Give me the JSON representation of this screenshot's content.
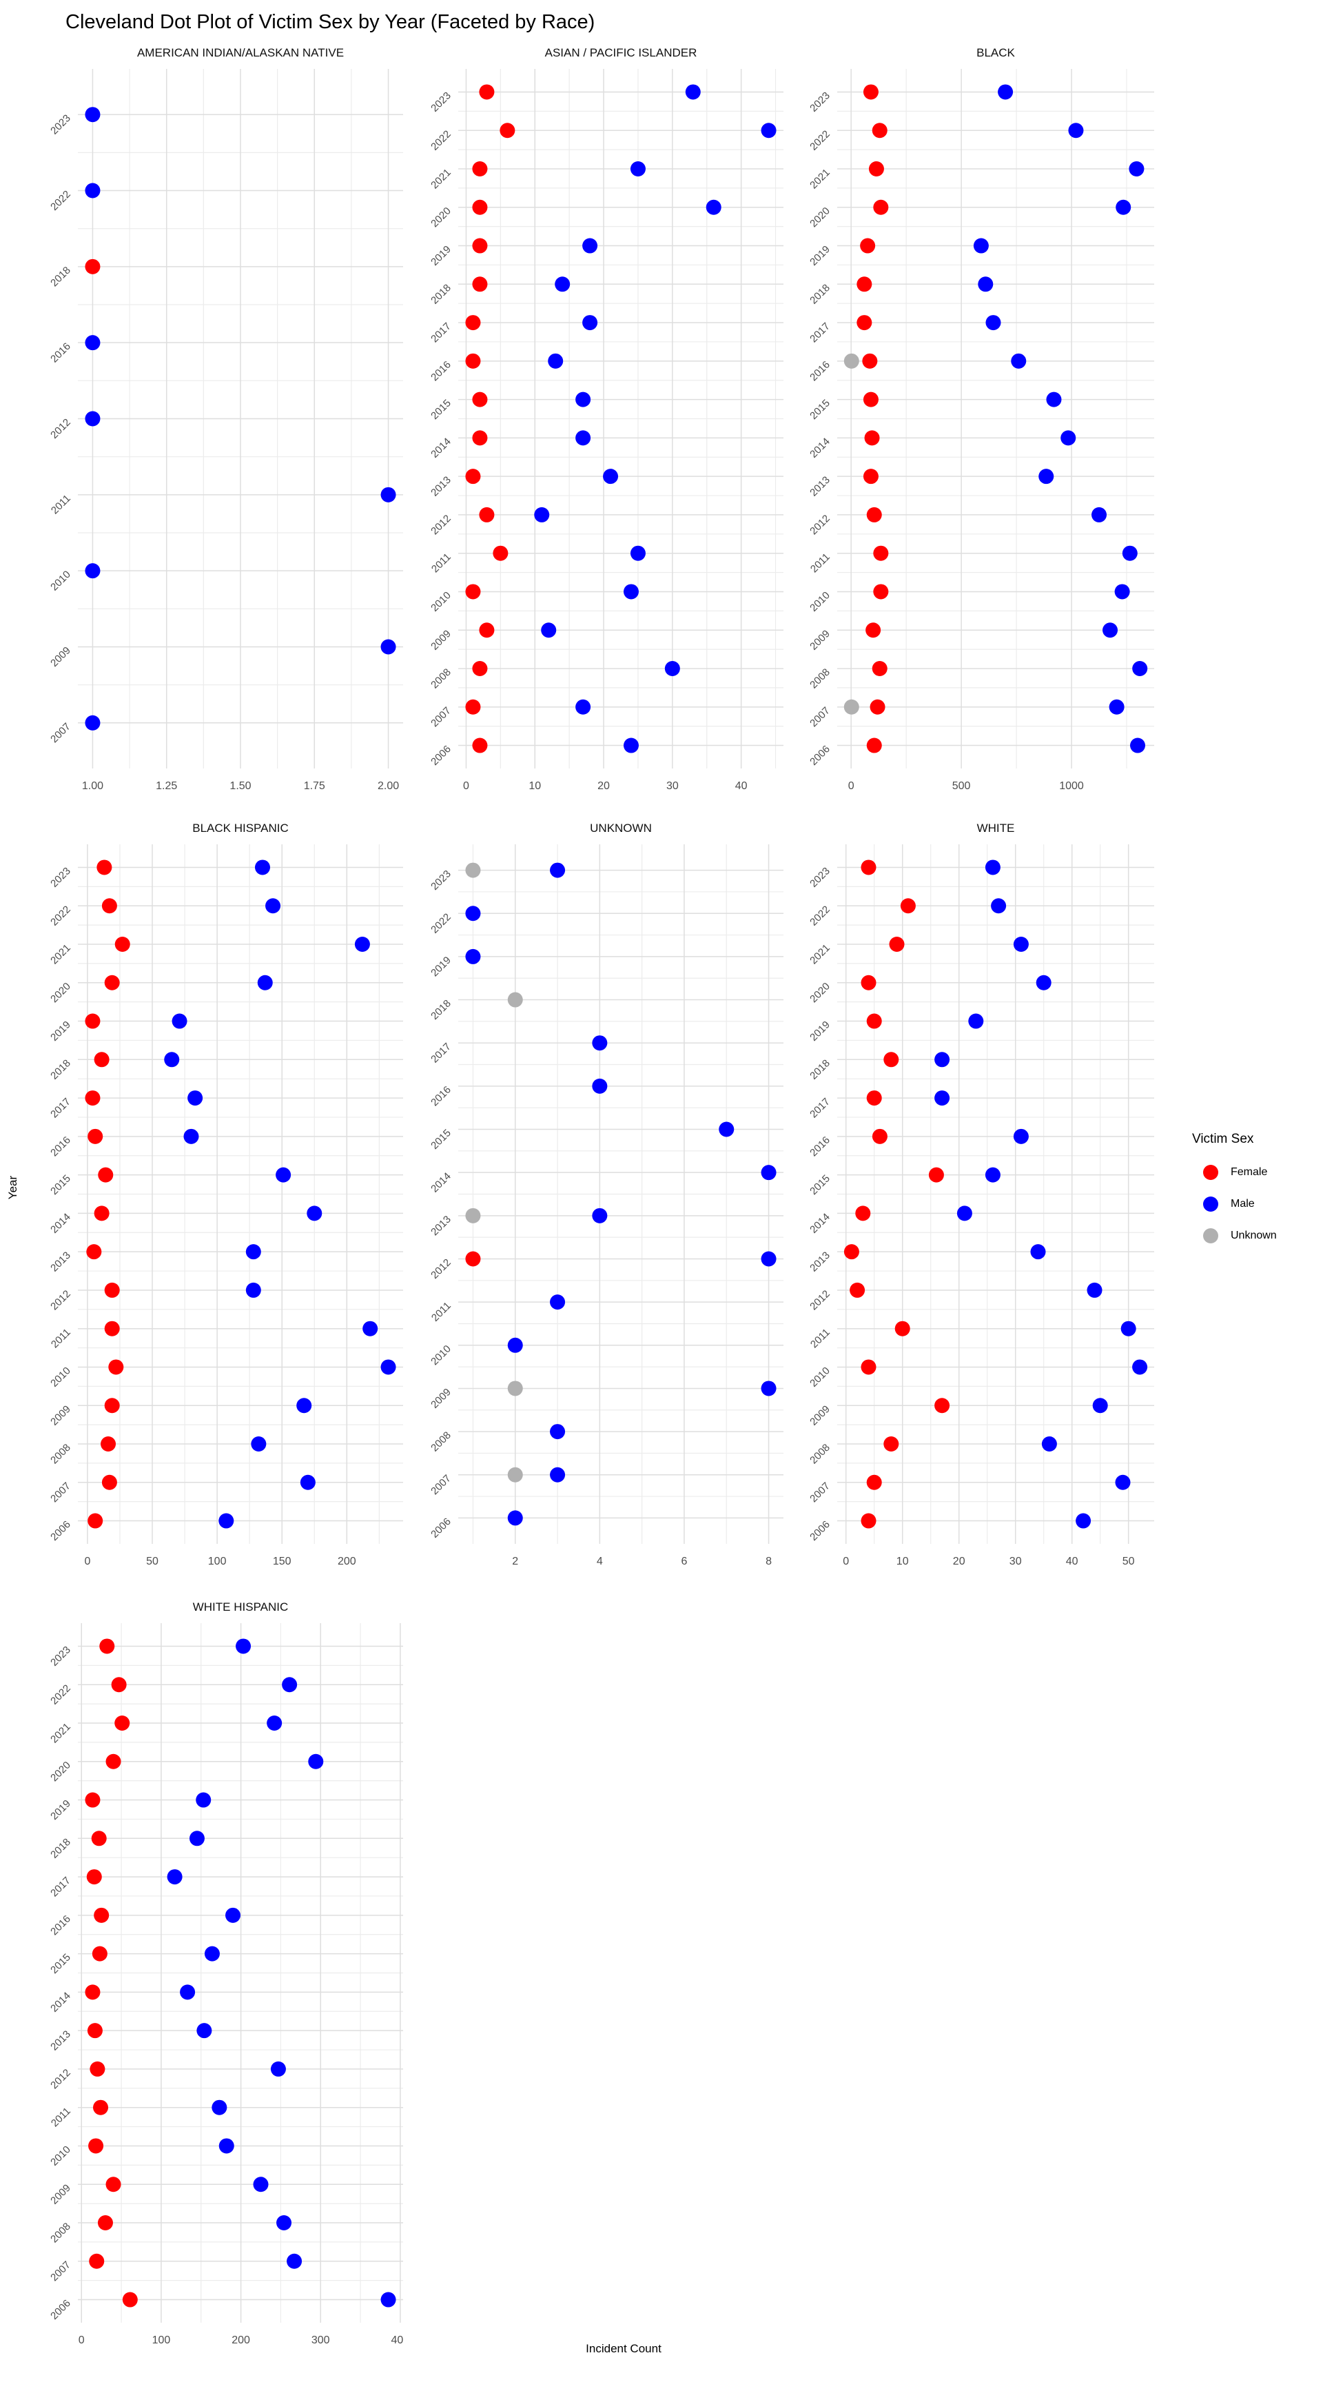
{
  "title": "Cleveland Dot Plot of Victim Sex by Year (Faceted by Race)",
  "axes": {
    "x_label": "Incident Count",
    "y_label": "Year"
  },
  "legend": {
    "title": "Victim Sex",
    "items": [
      {
        "label": "Female",
        "color": "#ff0000"
      },
      {
        "label": "Male",
        "color": "#0000ff"
      },
      {
        "label": "Unknown",
        "color": "#b0b0b0"
      }
    ]
  },
  "colors": {
    "female": "#ff0000",
    "male": "#0000ff",
    "unknown": "#b0b0b0",
    "grid_major": "#dedede",
    "grid_minor": "#ececec",
    "tick_text": "#4d4d4d"
  },
  "chart_data": [
    {
      "type": "scatter",
      "facet": "AMERICAN INDIAN/ALASKAN NATIVE",
      "x_domain": [
        0.95,
        2.05
      ],
      "x_ticks": [
        1,
        1.25,
        1.5,
        1.75,
        2
      ],
      "x_tick_labels": [
        "1.00",
        "1.25",
        "1.50",
        "1.75",
        "2.00"
      ],
      "x_minor": [
        1.125,
        1.375,
        1.625,
        1.875
      ],
      "points": [
        {
          "year": "2023",
          "male": 1
        },
        {
          "year": "2022",
          "male": 1
        },
        {
          "year": "2018",
          "female": 1
        },
        {
          "year": "2016",
          "male": 1
        },
        {
          "year": "2012",
          "male": 1
        },
        {
          "year": "2011",
          "male": 2
        },
        {
          "year": "2010",
          "male": 1
        },
        {
          "year": "2009",
          "male": 2
        },
        {
          "year": "2007",
          "male": 1
        }
      ]
    },
    {
      "type": "scatter",
      "facet": "ASIAN / PACIFIC ISLANDER",
      "x_domain": [
        -1.15,
        46.15
      ],
      "x_ticks": [
        0,
        10,
        20,
        30,
        40
      ],
      "x_tick_labels": [
        "0",
        "10",
        "20",
        "30",
        "40"
      ],
      "x_minor": [
        5,
        15,
        25,
        35,
        45
      ],
      "points": [
        {
          "year": "2023",
          "female": 3,
          "male": 33
        },
        {
          "year": "2022",
          "female": 6,
          "male": 44
        },
        {
          "year": "2021",
          "female": 2,
          "male": 25
        },
        {
          "year": "2020",
          "female": 2,
          "male": 36
        },
        {
          "year": "2019",
          "female": 2,
          "male": 18
        },
        {
          "year": "2018",
          "female": 2,
          "male": 14
        },
        {
          "year": "2017",
          "female": 1,
          "male": 18
        },
        {
          "year": "2016",
          "female": 1,
          "male": 13
        },
        {
          "year": "2015",
          "female": 2,
          "male": 17
        },
        {
          "year": "2014",
          "female": 2,
          "male": 17
        },
        {
          "year": "2013",
          "female": 1,
          "male": 21
        },
        {
          "year": "2012",
          "female": 3,
          "male": 11
        },
        {
          "year": "2011",
          "female": 5,
          "male": 25
        },
        {
          "year": "2010",
          "female": 1,
          "male": 24
        },
        {
          "year": "2009",
          "female": 3,
          "male": 12
        },
        {
          "year": "2008",
          "female": 2,
          "male": 30
        },
        {
          "year": "2007",
          "female": 1,
          "male": 17
        },
        {
          "year": "2006",
          "female": 2,
          "male": 24
        }
      ]
    },
    {
      "type": "scatter",
      "facet": "BLACK",
      "x_domain": [
        -63,
        1375
      ],
      "x_ticks": [
        0,
        500,
        1000
      ],
      "x_tick_labels": [
        "0",
        "500",
        "1000"
      ],
      "x_minor": [
        250,
        750,
        1250
      ],
      "points": [
        {
          "year": "2023",
          "female": 90,
          "male": 700
        },
        {
          "year": "2022",
          "female": 130,
          "male": 1020
        },
        {
          "year": "2021",
          "female": 115,
          "male": 1295
        },
        {
          "year": "2020",
          "female": 135,
          "male": 1235
        },
        {
          "year": "2019",
          "female": 75,
          "male": 590
        },
        {
          "year": "2018",
          "female": 60,
          "male": 610
        },
        {
          "year": "2017",
          "female": 60,
          "male": 645
        },
        {
          "year": "2016",
          "female": 85,
          "male": 760,
          "unknown": 2
        },
        {
          "year": "2015",
          "female": 90,
          "male": 920
        },
        {
          "year": "2014",
          "female": 95,
          "male": 985
        },
        {
          "year": "2013",
          "female": 90,
          "male": 885
        },
        {
          "year": "2012",
          "female": 105,
          "male": 1125
        },
        {
          "year": "2011",
          "female": 135,
          "male": 1265
        },
        {
          "year": "2010",
          "female": 135,
          "male": 1230
        },
        {
          "year": "2009",
          "female": 100,
          "male": 1175
        },
        {
          "year": "2008",
          "female": 130,
          "male": 1310
        },
        {
          "year": "2007",
          "female": 120,
          "male": 1205,
          "unknown": 2
        },
        {
          "year": "2006",
          "female": 105,
          "male": 1300
        }
      ]
    },
    {
      "type": "scatter",
      "facet": "BLACK HISPANIC",
      "x_domain": [
        -7.4,
        243.4
      ],
      "x_ticks": [
        0,
        50,
        100,
        150,
        200
      ],
      "x_tick_labels": [
        "0",
        "50",
        "100",
        "150",
        "200"
      ],
      "x_minor": [
        25,
        75,
        125,
        175,
        225
      ],
      "points": [
        {
          "year": "2023",
          "female": 13,
          "male": 135
        },
        {
          "year": "2022",
          "female": 17,
          "male": 143
        },
        {
          "year": "2021",
          "female": 27,
          "male": 212
        },
        {
          "year": "2020",
          "female": 19,
          "male": 137
        },
        {
          "year": "2019",
          "female": 4,
          "male": 71
        },
        {
          "year": "2018",
          "female": 11,
          "male": 65
        },
        {
          "year": "2017",
          "female": 4,
          "male": 83
        },
        {
          "year": "2016",
          "female": 6,
          "male": 80
        },
        {
          "year": "2015",
          "female": 14,
          "male": 151
        },
        {
          "year": "2014",
          "female": 11,
          "male": 175
        },
        {
          "year": "2013",
          "female": 5,
          "male": 128
        },
        {
          "year": "2012",
          "female": 19,
          "male": 128
        },
        {
          "year": "2011",
          "female": 19,
          "male": 218
        },
        {
          "year": "2010",
          "female": 22,
          "male": 232
        },
        {
          "year": "2009",
          "female": 19,
          "male": 167
        },
        {
          "year": "2008",
          "female": 16,
          "male": 132
        },
        {
          "year": "2007",
          "female": 17,
          "male": 170
        },
        {
          "year": "2006",
          "female": 6,
          "male": 107
        }
      ]
    },
    {
      "type": "scatter",
      "facet": "UNKNOWN",
      "x_domain": [
        0.65,
        8.35
      ],
      "x_ticks": [
        2,
        4,
        6,
        8
      ],
      "x_tick_labels": [
        "2",
        "4",
        "6",
        "8"
      ],
      "x_minor": [
        1,
        3,
        5,
        7
      ],
      "points": [
        {
          "year": "2023",
          "male": 3,
          "unknown": 1
        },
        {
          "year": "2022",
          "male": 1
        },
        {
          "year": "2019",
          "male": 1
        },
        {
          "year": "2018",
          "unknown": 2
        },
        {
          "year": "2017",
          "male": 4
        },
        {
          "year": "2016",
          "male": 4
        },
        {
          "year": "2015",
          "male": 7
        },
        {
          "year": "2014",
          "male": 8
        },
        {
          "year": "2013",
          "male": 4,
          "unknown": 1
        },
        {
          "year": "2012",
          "female": 1,
          "male": 8
        },
        {
          "year": "2011",
          "male": 3
        },
        {
          "year": "2010",
          "male": 2
        },
        {
          "year": "2009",
          "male": 8,
          "unknown": 2
        },
        {
          "year": "2008",
          "male": 3
        },
        {
          "year": "2007",
          "male": 3,
          "unknown": 2
        },
        {
          "year": "2006",
          "male": 2
        }
      ]
    },
    {
      "type": "scatter",
      "facet": "WHITE",
      "x_domain": [
        -1.55,
        54.55
      ],
      "x_ticks": [
        0,
        10,
        20,
        30,
        40,
        50
      ],
      "x_tick_labels": [
        "0",
        "10",
        "20",
        "30",
        "40",
        "50"
      ],
      "x_minor": [
        5,
        15,
        25,
        35,
        45
      ],
      "points": [
        {
          "year": "2023",
          "female": 4,
          "male": 26
        },
        {
          "year": "2022",
          "female": 11,
          "male": 27
        },
        {
          "year": "2021",
          "female": 9,
          "male": 31
        },
        {
          "year": "2020",
          "female": 4,
          "male": 35
        },
        {
          "year": "2019",
          "female": 5,
          "male": 23
        },
        {
          "year": "2018",
          "female": 8,
          "male": 17
        },
        {
          "year": "2017",
          "female": 5,
          "male": 17
        },
        {
          "year": "2016",
          "female": 6,
          "male": 31
        },
        {
          "year": "2015",
          "female": 16,
          "male": 26
        },
        {
          "year": "2014",
          "female": 3,
          "male": 21
        },
        {
          "year": "2013",
          "female": 1,
          "male": 34
        },
        {
          "year": "2012",
          "female": 2,
          "male": 44
        },
        {
          "year": "2011",
          "female": 10,
          "male": 50
        },
        {
          "year": "2010",
          "female": 4,
          "male": 52
        },
        {
          "year": "2009",
          "female": 17,
          "male": 45
        },
        {
          "year": "2008",
          "female": 8,
          "male": 36
        },
        {
          "year": "2007",
          "female": 5,
          "male": 49
        },
        {
          "year": "2006",
          "female": 4,
          "male": 42
        }
      ]
    },
    {
      "type": "scatter",
      "facet": "WHITE HISPANIC",
      "x_domain": [
        -4.55,
        403.55
      ],
      "x_ticks": [
        0,
        100,
        200,
        300,
        400
      ],
      "x_tick_labels": [
        "0",
        "100",
        "200",
        "300",
        "400"
      ],
      "x_minor": [
        50,
        150,
        250,
        350
      ],
      "points": [
        {
          "year": "2023",
          "female": 32,
          "male": 203
        },
        {
          "year": "2022",
          "female": 47,
          "male": 261
        },
        {
          "year": "2021",
          "female": 51,
          "male": 242
        },
        {
          "year": "2020",
          "female": 40,
          "male": 294
        },
        {
          "year": "2019",
          "female": 14,
          "male": 153
        },
        {
          "year": "2018",
          "female": 22,
          "male": 145
        },
        {
          "year": "2017",
          "female": 16,
          "male": 117
        },
        {
          "year": "2016",
          "female": 25,
          "male": 190
        },
        {
          "year": "2015",
          "female": 23,
          "male": 164
        },
        {
          "year": "2014",
          "female": 14,
          "male": 133
        },
        {
          "year": "2013",
          "female": 17,
          "male": 154
        },
        {
          "year": "2012",
          "female": 20,
          "male": 247
        },
        {
          "year": "2011",
          "female": 24,
          "male": 173
        },
        {
          "year": "2010",
          "female": 18,
          "male": 182
        },
        {
          "year": "2009",
          "female": 40,
          "male": 225
        },
        {
          "year": "2008",
          "female": 30,
          "male": 254
        },
        {
          "year": "2007",
          "female": 19,
          "male": 267
        },
        {
          "year": "2006",
          "female": 61,
          "male": 385
        }
      ]
    }
  ]
}
